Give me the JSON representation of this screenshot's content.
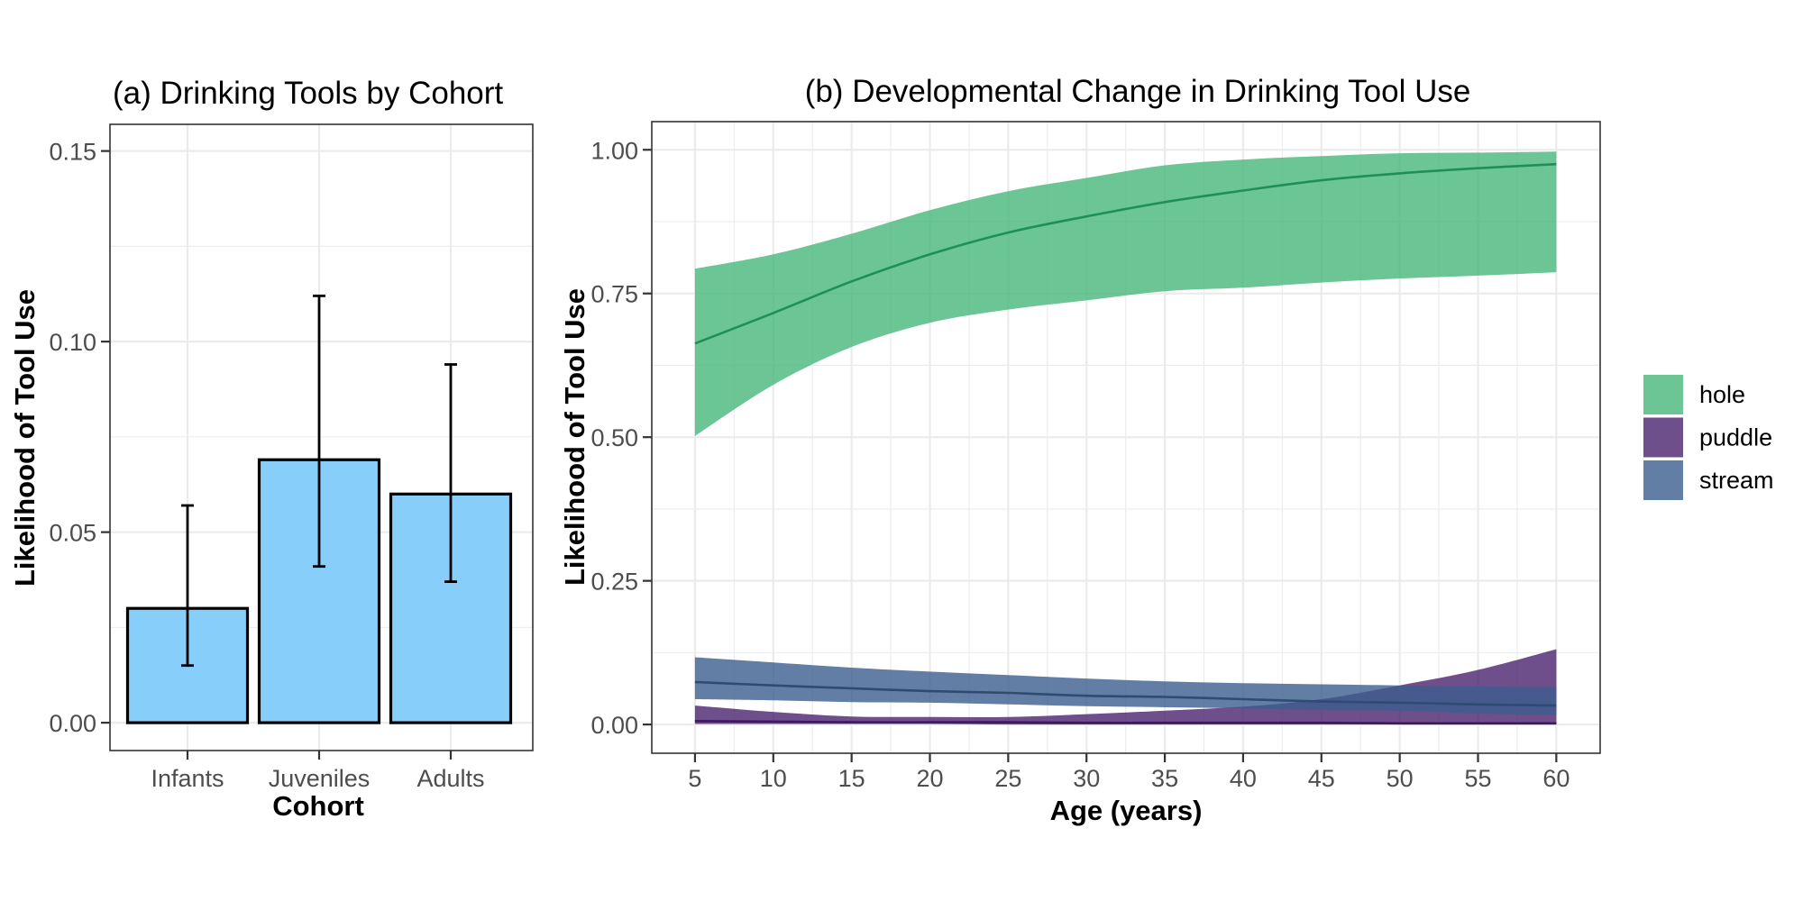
{
  "chart_data": [
    {
      "type": "bar",
      "title": "(a) Drinking Tools by Cohort",
      "xlabel": "Cohort",
      "ylabel": "Likelihood of Tool Use",
      "categories": [
        "Infants",
        "Juveniles",
        "Adults"
      ],
      "values": [
        0.03,
        0.069,
        0.06
      ],
      "error_lower": [
        0.015,
        0.041,
        0.037
      ],
      "error_upper": [
        0.057,
        0.112,
        0.094
      ],
      "bar_color": "#87CEFA",
      "bar_outline": "#000000",
      "ylim": [
        -0.0073,
        0.157
      ],
      "yticks": [
        0.0,
        0.05,
        0.1,
        0.15
      ],
      "ytick_labels": [
        "0.00",
        "0.05",
        "0.10",
        "0.15"
      ],
      "yminor": [
        0.025,
        0.075,
        0.125
      ],
      "grid": true
    },
    {
      "type": "area",
      "title": "(b) Developmental Change in Drinking Tool Use",
      "xlabel": "Age (years)",
      "ylabel": "Likelihood of Tool Use",
      "x": [
        5,
        10,
        15,
        20,
        25,
        30,
        35,
        40,
        45,
        50,
        55,
        60
      ],
      "xlim": [
        2.24,
        62.8
      ],
      "ylim": [
        -0.05,
        1.049
      ],
      "xticks": [
        5,
        10,
        15,
        20,
        25,
        30,
        35,
        40,
        45,
        50,
        55,
        60
      ],
      "xtick_labels": [
        "5",
        "10",
        "15",
        "20",
        "25",
        "30",
        "35",
        "40",
        "45",
        "50",
        "55",
        "60"
      ],
      "xminor": [
        7.5,
        12.5,
        17.5,
        22.5,
        27.5,
        32.5,
        37.5,
        42.5,
        47.5,
        52.5,
        57.5
      ],
      "yticks": [
        0.0,
        0.25,
        0.5,
        0.75,
        1.0
      ],
      "ytick_labels": [
        "0.00",
        "0.25",
        "0.50",
        "0.75",
        "1.00"
      ],
      "yminor": [
        0.125,
        0.375,
        0.625,
        0.875
      ],
      "grid": true,
      "legend_position": "right",
      "series": [
        {
          "name": "hole",
          "fill": "#47B67A",
          "line": "#1F8F58",
          "mean": [
            0.663,
            0.716,
            0.771,
            0.818,
            0.856,
            0.884,
            0.909,
            0.929,
            0.947,
            0.959,
            0.968,
            0.975
          ],
          "lower": [
            0.502,
            0.591,
            0.657,
            0.699,
            0.722,
            0.738,
            0.754,
            0.76,
            0.769,
            0.776,
            0.781,
            0.787
          ],
          "upper": [
            0.793,
            0.818,
            0.854,
            0.895,
            0.928,
            0.951,
            0.973,
            0.983,
            0.989,
            0.994,
            0.995,
            0.997
          ]
        },
        {
          "name": "puddle",
          "fill": "#4A226E",
          "line": "#3D1A5E",
          "mean": [
            0.006,
            0.005,
            0.004,
            0.004,
            0.004,
            0.003,
            0.003,
            0.003,
            0.003,
            0.002,
            0.002,
            0.002
          ],
          "lower": [
            0.001,
            0.001,
            0.001,
            0.001,
            0.0,
            0.0,
            0.0,
            0.0,
            0.0,
            0.0,
            0.0,
            0.0
          ],
          "upper": [
            0.033,
            0.022,
            0.014,
            0.013,
            0.013,
            0.018,
            0.024,
            0.031,
            0.044,
            0.068,
            0.095,
            0.131
          ]
        },
        {
          "name": "stream",
          "fill": "#3C5E8E",
          "line": "#2E4B73",
          "mean": [
            0.074,
            0.068,
            0.063,
            0.058,
            0.055,
            0.05,
            0.048,
            0.044,
            0.04,
            0.038,
            0.035,
            0.033
          ],
          "lower": [
            0.044,
            0.042,
            0.039,
            0.038,
            0.035,
            0.032,
            0.03,
            0.028,
            0.025,
            0.024,
            0.019,
            0.016
          ],
          "upper": [
            0.117,
            0.108,
            0.099,
            0.092,
            0.086,
            0.08,
            0.075,
            0.072,
            0.07,
            0.068,
            0.066,
            0.065
          ]
        }
      ]
    }
  ]
}
